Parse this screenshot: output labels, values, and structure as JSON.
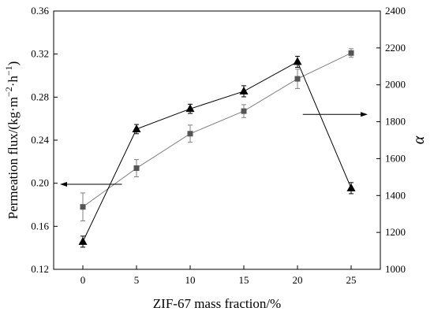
{
  "chart_data": {
    "type": "line",
    "x": [
      0,
      5,
      10,
      15,
      20,
      25
    ],
    "x_ticks": [
      "0",
      "5",
      "10",
      "15",
      "20",
      "25"
    ],
    "xlabel": "ZIF-67 mass fraction/%",
    "ylabel_left": {
      "main": "Permeation flux/(kg·m",
      "sup1": "−2",
      "mid": "·h",
      "sup2": "−1",
      "end": ")"
    },
    "ylabel_right": "α",
    "ylim_left": [
      0.12,
      0.36
    ],
    "ylim_right": [
      1000,
      2400
    ],
    "y_ticks_left": [
      "0.12",
      "0.16",
      "0.20",
      "0.24",
      "0.28",
      "0.32",
      "0.36"
    ],
    "y_ticks_right": [
      "1000",
      "1200",
      "1400",
      "1600",
      "1800",
      "2000",
      "2200",
      "2400"
    ],
    "series": [
      {
        "axis": "left",
        "marker": "square",
        "color": "#808080",
        "marker_color": "#555555",
        "values": [
          0.178,
          0.214,
          0.246,
          0.267,
          0.297,
          0.321
        ],
        "errors": [
          0.013,
          0.008,
          0.008,
          0.006,
          0.009,
          0.004
        ]
      },
      {
        "axis": "right",
        "marker": "triangle",
        "color": "#000000",
        "marker_color": "#000000",
        "values": [
          1150,
          1760,
          1870,
          1965,
          2125,
          1440
        ],
        "errors": [
          30,
          25,
          25,
          30,
          30,
          30
        ]
      }
    ],
    "annotations": [
      {
        "type": "arrow",
        "points_to": "left",
        "x": 0.55,
        "y_left": 0.199
      },
      {
        "type": "arrow",
        "points_to": "right",
        "x": 20.5,
        "y_right": 1840
      }
    ],
    "grid": false,
    "legend": "none"
  }
}
